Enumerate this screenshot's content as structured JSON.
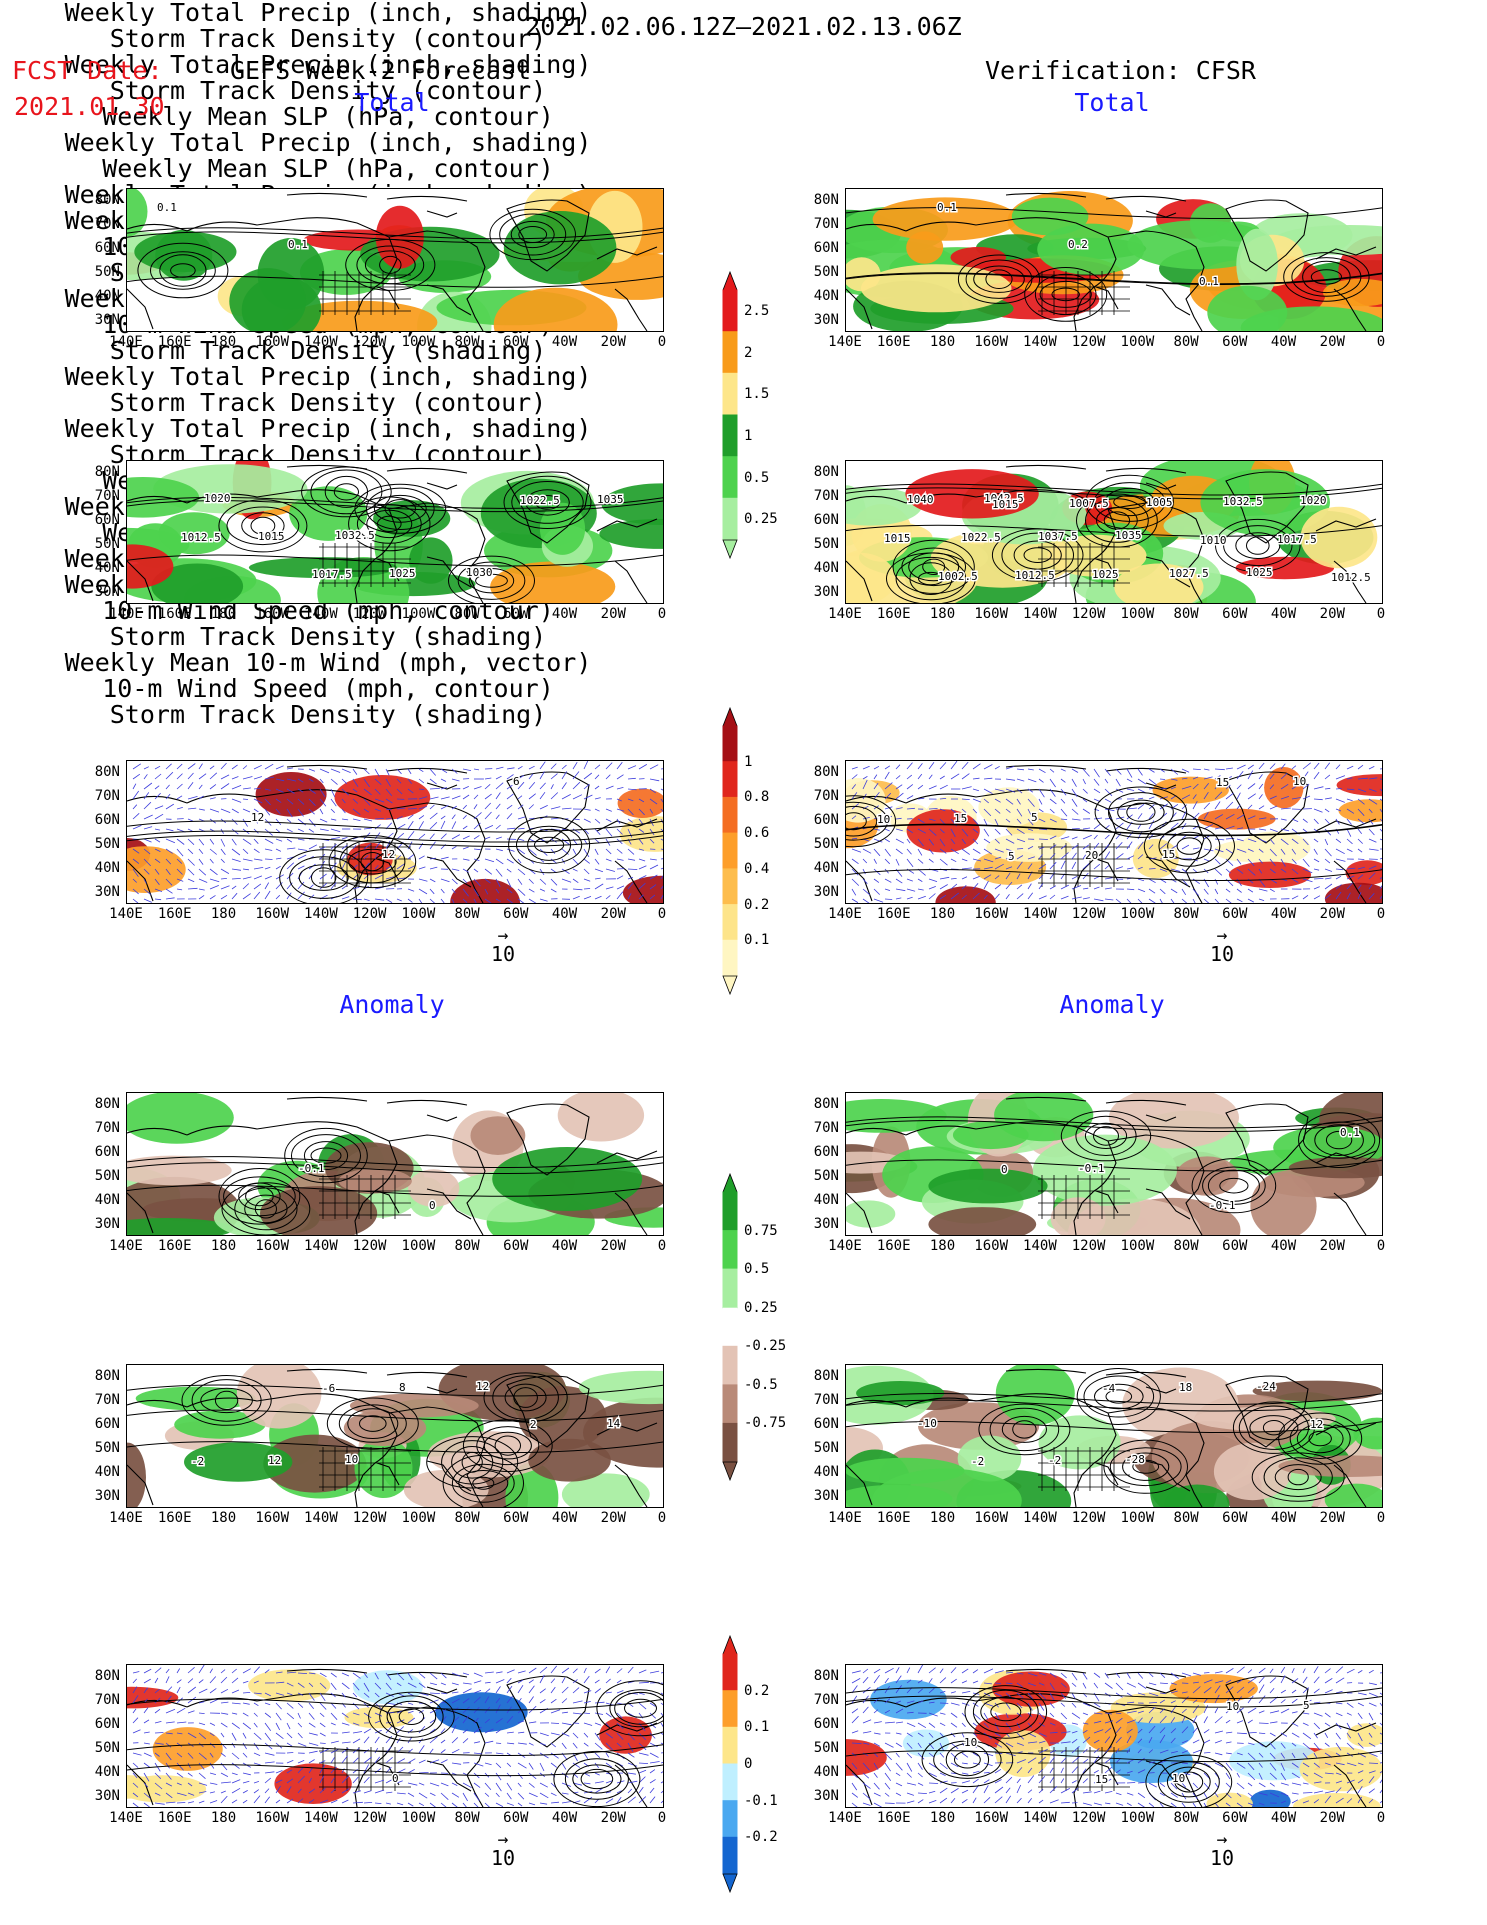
{
  "header": {
    "period": "2021.02.06.12Z–2021.02.13.06Z",
    "fcst_label": "FCST Date:",
    "fcst_date": "2021.01.30",
    "left_title": "GEFS Week-2 Forecast",
    "right_title": "Verification: CFSR",
    "total_label": "Total",
    "anomaly_label": "Anomaly"
  },
  "panel_titles": {
    "precip_storm": [
      "Weekly Total Precip (inch, shading)",
      "Storm Track Density (contour)"
    ],
    "slp_precip": [
      "Weekly Mean SLP (hPa, contour)",
      "Weekly Total Precip (inch, shading)"
    ],
    "wind_storm": [
      "Weekly Mean 10-m Wind (mph, vector)",
      "10-m Wind Speed (mph, contour)",
      "Storm Track Density (shading)"
    ]
  },
  "axes": {
    "lat_labels": [
      "80N",
      "70N",
      "60N",
      "50N",
      "40N",
      "30N"
    ],
    "lon_labels": [
      "140E",
      "160E",
      "180",
      "160W",
      "140W",
      "120W",
      "100W",
      "80W",
      "60W",
      "40W",
      "20W",
      "0"
    ]
  },
  "vector_ref": "10",
  "colorbars": {
    "precip_total": {
      "labels": [
        "2.5",
        "2",
        "1.5",
        "1",
        "0.5",
        "0.25"
      ],
      "colors": [
        "#e31a1c",
        "#f89b1a",
        "#fde68a",
        "#1f9e2a",
        "#4dd24d",
        "#a6eea0"
      ]
    },
    "storm_total": {
      "labels": [
        "1",
        "0.8",
        "0.6",
        "0.4",
        "0.2",
        "0.1"
      ],
      "colors": [
        "#a50f15",
        "#e0261c",
        "#f46d22",
        "#fd9e2a",
        "#fdbd4d",
        "#fde48a",
        "#fff6c2"
      ]
    },
    "precip_anom": {
      "labels": [
        "0.75",
        "0.5",
        "0.25",
        "-0.25",
        "-0.5",
        "-0.75"
      ],
      "colors": [
        "#1f9e2a",
        "#4dd24d",
        "#a6eea0",
        "#ffffff",
        "#e3c3b5",
        "#b98a78",
        "#7a5142"
      ]
    },
    "storm_anom": {
      "labels": [
        "0.2",
        "0.1",
        "0",
        "-0.1",
        "-0.2"
      ],
      "colors": [
        "#e0261c",
        "#fd9e2a",
        "#fde68a",
        "#bfefff",
        "#4aa8f0",
        "#1466d0"
      ]
    }
  },
  "contour_labels": {
    "l_precip_total": [
      "0.1",
      "0.1"
    ],
    "r_precip_total": [
      "0.1",
      "0.2",
      "0.1"
    ],
    "l_slp_total": [
      "1020",
      "1032.5",
      "1030",
      "1035",
      "1015",
      "1025",
      "1022.5",
      "1012.5",
      "1017.5"
    ],
    "r_slp_total": [
      "1042.5",
      "1035",
      "1025",
      "1040",
      "1037.5",
      "1027.5",
      "1020",
      "1022.5",
      "1025",
      "1032.5",
      "1015",
      "1012.5",
      "1005",
      "1017.5",
      "1002.5",
      "1007.5",
      "1010",
      "1012.5",
      "1015"
    ],
    "l_wind_total": [
      "12",
      "12",
      "6"
    ],
    "r_wind_total": [
      "5",
      "15",
      "10",
      "15",
      "20",
      "15",
      "10",
      "5"
    ],
    "l_precip_anom": [
      "-0.1",
      "0"
    ],
    "r_precip_anom": [
      "-0.1",
      "-0.1",
      "0.1",
      "0"
    ],
    "l_slp_anom": [
      "10",
      "12",
      "14",
      "12",
      "8",
      "2",
      "-2",
      "-6"
    ],
    "r_slp_anom": [
      "-28",
      "-24",
      "-10",
      "-2",
      "18",
      "12",
      "-2",
      "-4"
    ],
    "l_wind_anom": [
      "0"
    ],
    "r_wind_anom": [
      "10",
      "5",
      "10",
      "15",
      "10"
    ]
  }
}
